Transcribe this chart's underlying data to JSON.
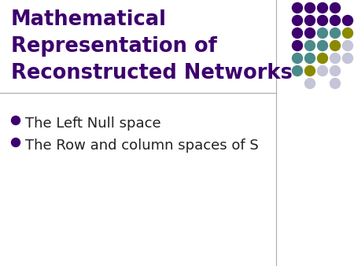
{
  "title_lines": [
    "Mathematical",
    "Representation of",
    "Reconstructed Networks"
  ],
  "title_color": "#3d006e",
  "title_fontsize": 18.5,
  "bullet_items": [
    "The Left Null space",
    "The Row and column spaces of S"
  ],
  "bullet_color": "#222222",
  "bullet_fontsize": 13,
  "bullet_dot_color": "#3d006e",
  "bg_color": "#ffffff",
  "divider_color": "#aaaaaa",
  "fig_width": 4.5,
  "fig_height": 3.38,
  "dpi": 100,
  "dot_grid": {
    "rows": 7,
    "cols": 5,
    "pattern": [
      [
        1,
        1,
        1,
        1,
        0
      ],
      [
        1,
        1,
        1,
        1,
        1
      ],
      [
        1,
        1,
        2,
        2,
        3
      ],
      [
        1,
        2,
        2,
        3,
        4
      ],
      [
        2,
        2,
        3,
        4,
        4
      ],
      [
        2,
        3,
        4,
        4,
        0
      ],
      [
        0,
        4,
        0,
        4,
        0
      ]
    ],
    "color_map": {
      "0": "",
      "1": "#3d006e",
      "2": "#4a8a8a",
      "3": "#8a8a00",
      "4": "#c5c5d8"
    }
  }
}
